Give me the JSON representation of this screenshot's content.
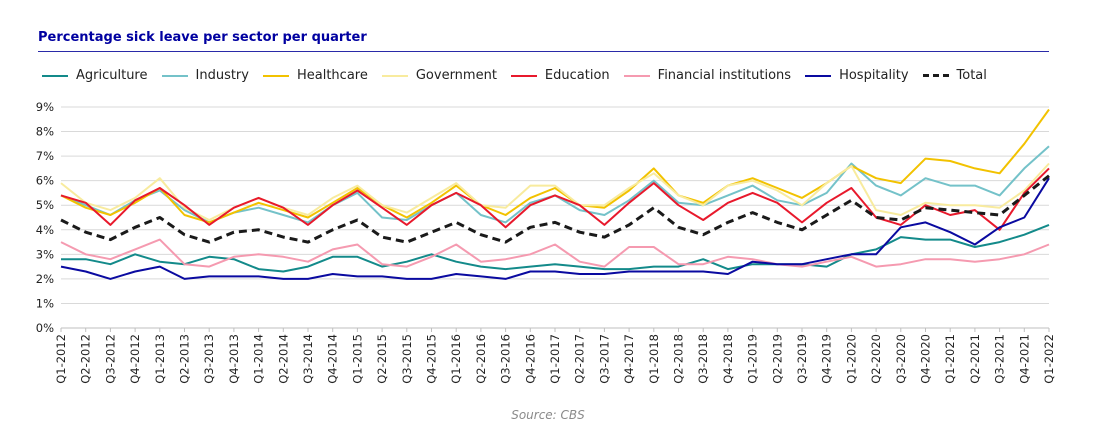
{
  "chart_data": {
    "type": "line",
    "title": "Percentage sick leave per sector per quarter",
    "source": "Source: CBS",
    "x": [
      "Q1-2012",
      "Q2-2012",
      "Q3-2012",
      "Q4-2012",
      "Q1-2013",
      "Q2-2013",
      "Q3-2013",
      "Q4-2013",
      "Q1-2014",
      "Q2-2014",
      "Q3-2014",
      "Q4-2014",
      "Q1-2015",
      "Q2-2015",
      "Q3-2015",
      "Q4-2015",
      "Q1-2016",
      "Q2-2016",
      "Q3-2016",
      "Q4-2016",
      "Q1-2017",
      "Q2-2017",
      "Q3-2017",
      "Q4-2017",
      "Q1-2018",
      "Q2-2018",
      "Q3-2018",
      "Q4-2018",
      "Q1-2019",
      "Q2-2019",
      "Q3-2019",
      "Q4-2019",
      "Q1-2020",
      "Q2-2020",
      "Q3-2020",
      "Q4-2020",
      "Q1-2021",
      "Q2-2021",
      "Q3-2021",
      "Q4-2021",
      "Q1-2022"
    ],
    "ylim": [
      0,
      9
    ],
    "yticks": [
      "0%",
      "1%",
      "2%",
      "3%",
      "4%",
      "5%",
      "6%",
      "7%",
      "8%",
      "9%"
    ],
    "legend_position": "top-left",
    "series": [
      {
        "name": "Agriculture",
        "color": "#138a8a",
        "dash": false,
        "values": [
          2.8,
          2.8,
          2.6,
          3.0,
          2.7,
          2.6,
          2.9,
          2.8,
          2.4,
          2.3,
          2.5,
          2.9,
          2.9,
          2.5,
          2.7,
          3.0,
          2.7,
          2.5,
          2.4,
          2.5,
          2.6,
          2.5,
          2.4,
          2.4,
          2.5,
          2.5,
          2.8,
          2.4,
          2.6,
          2.6,
          2.6,
          2.5,
          3.0,
          3.2,
          3.7,
          3.6,
          3.6,
          3.3,
          3.5,
          3.8,
          4.2
        ]
      },
      {
        "name": "Industry",
        "color": "#74c2c9",
        "dash": false,
        "values": [
          5.4,
          5.0,
          4.6,
          5.2,
          5.6,
          4.8,
          4.3,
          4.7,
          4.9,
          4.6,
          4.3,
          5.0,
          5.5,
          4.5,
          4.4,
          5.0,
          5.5,
          4.6,
          4.3,
          5.1,
          5.4,
          4.8,
          4.6,
          5.2,
          6.0,
          5.1,
          5.0,
          5.4,
          5.8,
          5.2,
          5.0,
          5.5,
          6.7,
          5.8,
          5.4,
          6.1,
          5.8,
          5.8,
          5.4,
          6.5,
          7.4
        ]
      },
      {
        "name": "Healthcare",
        "color": "#f2c200",
        "dash": false,
        "values": [
          5.4,
          4.9,
          4.6,
          5.1,
          5.7,
          4.6,
          4.3,
          4.7,
          5.1,
          4.8,
          4.5,
          5.1,
          5.7,
          5.0,
          4.5,
          5.1,
          5.8,
          5.0,
          4.6,
          5.3,
          5.7,
          5.0,
          4.9,
          5.6,
          6.5,
          5.4,
          5.1,
          5.8,
          6.1,
          5.7,
          5.3,
          5.9,
          6.6,
          6.1,
          5.9,
          6.9,
          6.8,
          6.5,
          6.3,
          7.5,
          8.9
        ]
      },
      {
        "name": "Government",
        "color": "#f8eb9e",
        "dash": false,
        "values": [
          5.9,
          5.1,
          4.8,
          5.3,
          6.1,
          4.9,
          4.4,
          4.9,
          5.3,
          4.9,
          4.6,
          5.3,
          5.8,
          5.0,
          4.7,
          5.3,
          5.9,
          5.0,
          4.9,
          5.8,
          5.8,
          5.0,
          5.0,
          5.7,
          6.3,
          5.4,
          5.0,
          5.8,
          6.0,
          5.6,
          5.0,
          5.9,
          6.6,
          4.8,
          4.6,
          5.1,
          5.0,
          5.0,
          4.9,
          5.6,
          6.7
        ]
      },
      {
        "name": "Education",
        "color": "#e8192c",
        "dash": false,
        "values": [
          5.4,
          5.1,
          4.2,
          5.2,
          5.7,
          5.0,
          4.2,
          4.9,
          5.3,
          4.9,
          4.2,
          5.0,
          5.6,
          4.9,
          4.2,
          5.0,
          5.5,
          5.0,
          4.1,
          5.0,
          5.4,
          5.0,
          4.2,
          5.1,
          5.9,
          5.0,
          4.4,
          5.1,
          5.5,
          5.1,
          4.3,
          5.1,
          5.7,
          4.5,
          4.2,
          5.0,
          4.6,
          4.8,
          4.0,
          5.5,
          6.5
        ]
      },
      {
        "name": "Financial institutions",
        "color": "#f59ab0",
        "dash": false,
        "values": [
          3.5,
          3.0,
          2.8,
          3.2,
          3.6,
          2.6,
          2.5,
          2.9,
          3.0,
          2.9,
          2.7,
          3.2,
          3.4,
          2.6,
          2.5,
          2.9,
          3.4,
          2.7,
          2.8,
          3.0,
          3.4,
          2.7,
          2.5,
          3.3,
          3.3,
          2.6,
          2.6,
          2.9,
          2.8,
          2.6,
          2.5,
          2.7,
          2.9,
          2.5,
          2.6,
          2.8,
          2.8,
          2.7,
          2.8,
          3.0,
          3.4
        ]
      },
      {
        "name": "Hospitality",
        "color": "#0a0aa0",
        "dash": false,
        "values": [
          2.5,
          2.3,
          2.0,
          2.3,
          2.5,
          2.0,
          2.1,
          2.1,
          2.1,
          2.0,
          2.0,
          2.2,
          2.1,
          2.1,
          2.0,
          2.0,
          2.2,
          2.1,
          2.0,
          2.3,
          2.3,
          2.2,
          2.2,
          2.3,
          2.3,
          2.3,
          2.3,
          2.2,
          2.7,
          2.6,
          2.6,
          2.8,
          3.0,
          3.0,
          4.1,
          4.3,
          3.9,
          3.4,
          4.1,
          4.5,
          6.1
        ]
      },
      {
        "name": "Total",
        "color": "#1a1a1a",
        "dash": true,
        "values": [
          4.4,
          3.9,
          3.6,
          4.1,
          4.5,
          3.8,
          3.5,
          3.9,
          4.0,
          3.7,
          3.5,
          4.0,
          4.4,
          3.7,
          3.5,
          3.9,
          4.3,
          3.8,
          3.5,
          4.1,
          4.3,
          3.9,
          3.7,
          4.2,
          4.9,
          4.1,
          3.8,
          4.3,
          4.7,
          4.3,
          4.0,
          4.6,
          5.2,
          4.5,
          4.4,
          4.9,
          4.8,
          4.7,
          4.6,
          5.4,
          6.2
        ]
      }
    ]
  }
}
